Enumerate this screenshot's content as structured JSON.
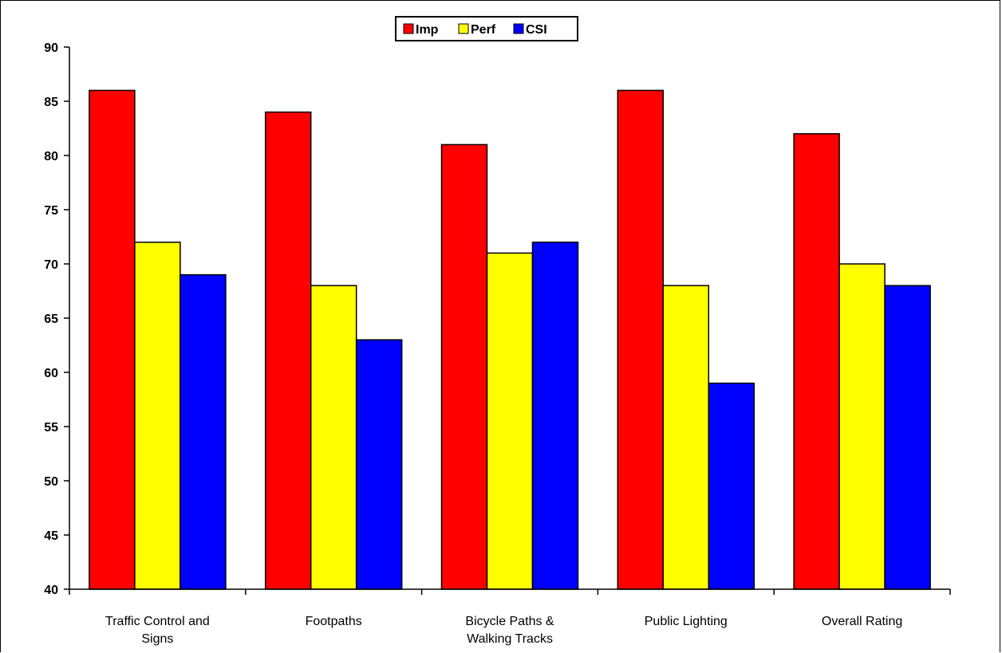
{
  "chart_data": {
    "type": "bar",
    "title": "",
    "xlabel": "",
    "ylabel": "",
    "categories": [
      [
        "Traffic Control and",
        "Signs"
      ],
      [
        "Footpaths"
      ],
      [
        "Bicycle Paths &",
        "Walking Tracks"
      ],
      [
        "Public Lighting"
      ],
      [
        "Overall Rating"
      ]
    ],
    "series": [
      {
        "name": "Imp",
        "color": "#ff0000",
        "values": [
          86,
          84,
          81,
          86,
          82
        ]
      },
      {
        "name": "Perf",
        "color": "#ffff00",
        "values": [
          72,
          68,
          71,
          68,
          70
        ]
      },
      {
        "name": "CSI",
        "color": "#0000ff",
        "values": [
          69,
          63,
          72,
          59,
          68
        ]
      }
    ],
    "ylim": [
      40,
      90
    ],
    "yticks": [
      40,
      45,
      50,
      55,
      60,
      65,
      70,
      75,
      80,
      85,
      90
    ],
    "grid": false,
    "legend_position": "top-center"
  }
}
